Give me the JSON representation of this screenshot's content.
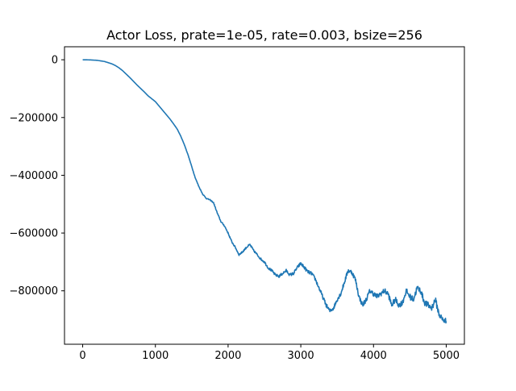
{
  "chart_data": {
    "type": "line",
    "title": "Actor Loss, prate=1e-05, rate=0.003, bsize=256",
    "xlabel": "",
    "ylabel": "",
    "xlim": [
      -250,
      5250
    ],
    "ylim": [
      -985000,
      45000
    ],
    "xticks": [
      0,
      1000,
      2000,
      3000,
      4000,
      5000
    ],
    "xtick_labels": [
      "0",
      "1000",
      "2000",
      "3000",
      "4000",
      "5000"
    ],
    "yticks": [
      0,
      -200000,
      -400000,
      -600000,
      -800000
    ],
    "ytick_labels": [
      "0",
      "−200000",
      "−400000",
      "−600000",
      "−800000"
    ],
    "grid": false,
    "legend": "none",
    "series": [
      {
        "color": "#1f77b4",
        "x": [
          0,
          100,
          200,
          300,
          400,
          450,
          500,
          550,
          600,
          650,
          700,
          750,
          800,
          850,
          900,
          950,
          1000,
          1050,
          1100,
          1150,
          1200,
          1250,
          1300,
          1350,
          1400,
          1450,
          1500,
          1550,
          1600,
          1650,
          1700,
          1750,
          1800,
          1850,
          1900,
          1950,
          2000,
          2050,
          2100,
          2150,
          2200,
          2250,
          2300,
          2350,
          2400,
          2450,
          2500,
          2550,
          2600,
          2650,
          2700,
          2750,
          2800,
          2850,
          2900,
          2950,
          3000,
          3050,
          3100,
          3150,
          3200,
          3250,
          3300,
          3350,
          3400,
          3450,
          3500,
          3550,
          3600,
          3650,
          3700,
          3750,
          3800,
          3850,
          3900,
          3950,
          4000,
          4050,
          4100,
          4150,
          4200,
          4250,
          4300,
          4350,
          4400,
          4450,
          4500,
          4550,
          4600,
          4650,
          4700,
          4750,
          4800,
          4850,
          4900,
          4950,
          5000
        ],
        "y": [
          0,
          -500,
          -2000,
          -6000,
          -14000,
          -20000,
          -28000,
          -38000,
          -50000,
          -62000,
          -75000,
          -88000,
          -100000,
          -112000,
          -125000,
          -135000,
          -145000,
          -160000,
          -175000,
          -190000,
          -205000,
          -222000,
          -240000,
          -265000,
          -295000,
          -330000,
          -370000,
          -410000,
          -440000,
          -465000,
          -480000,
          -485000,
          -495000,
          -530000,
          -560000,
          -575000,
          -600000,
          -630000,
          -650000,
          -675000,
          -665000,
          -650000,
          -640000,
          -660000,
          -675000,
          -690000,
          -700000,
          -720000,
          -730000,
          -745000,
          -750000,
          -740000,
          -730000,
          -745000,
          -740000,
          -720000,
          -705000,
          -720000,
          -735000,
          -740000,
          -760000,
          -790000,
          -820000,
          -850000,
          -870000,
          -860000,
          -830000,
          -810000,
          -770000,
          -730000,
          -735000,
          -760000,
          -820000,
          -850000,
          -830000,
          -800000,
          -810000,
          -820000,
          -810000,
          -800000,
          -810000,
          -850000,
          -830000,
          -850000,
          -840000,
          -800000,
          -820000,
          -830000,
          -790000,
          -800000,
          -840000,
          -850000,
          -860000,
          -830000,
          -880000,
          -900000,
          -905000
        ]
      }
    ]
  }
}
